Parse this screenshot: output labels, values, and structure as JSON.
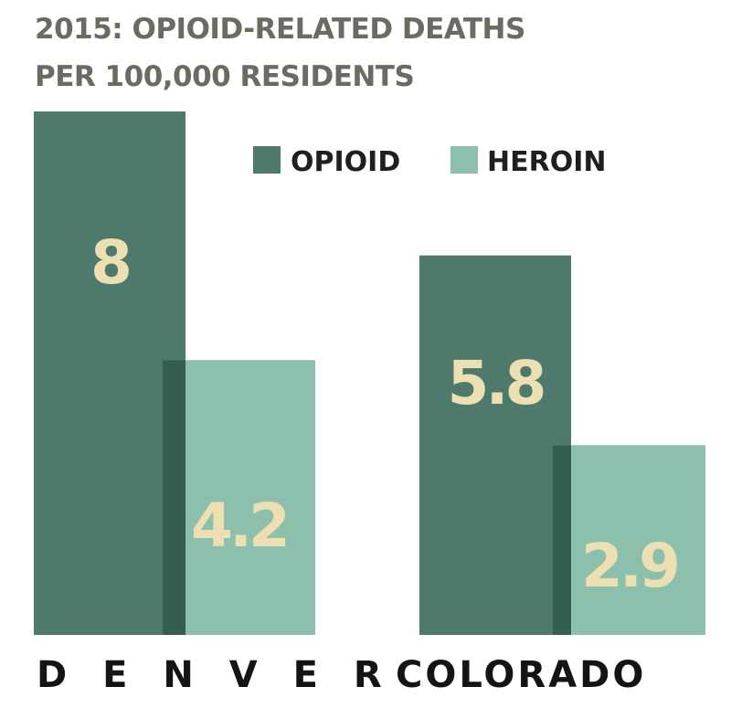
{
  "chart_data": {
    "type": "bar",
    "title_line1": "2015: OPIOID-RELATED DEATHS",
    "title_line2": "PER 100,000 RESIDENTS",
    "categories": [
      "D E N V E R",
      "COLORADO"
    ],
    "series": [
      {
        "name": "OPIOID",
        "values": [
          8,
          5.8
        ],
        "color": "#4e7a6d"
      },
      {
        "name": "HEROIN",
        "values": [
          4.2,
          2.9
        ],
        "color": "#8dbfad"
      }
    ],
    "value_labels": [
      [
        "8",
        "4.2"
      ],
      [
        "5.8",
        "2.9"
      ]
    ],
    "overlap_color": "#355e52",
    "value_label_color": "#ecdfb1",
    "legend_position": "top-right",
    "grid": false,
    "ylim": [
      0,
      8
    ]
  }
}
